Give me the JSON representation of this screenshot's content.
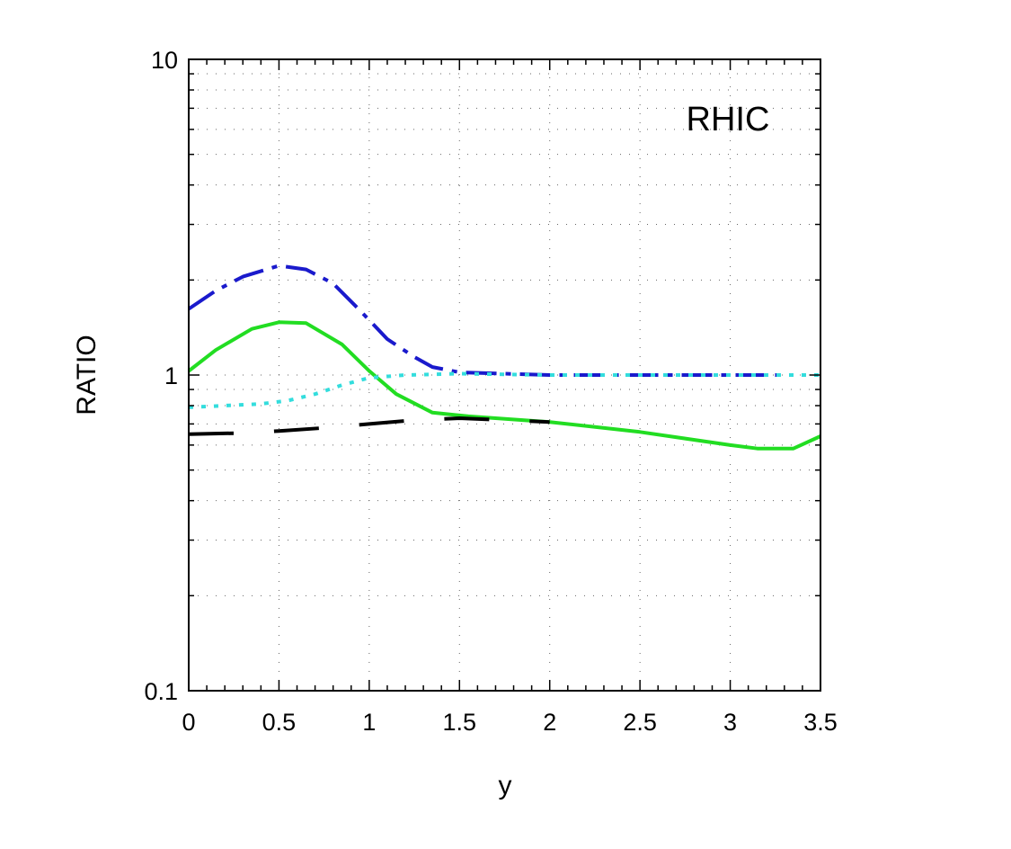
{
  "chart_data": {
    "type": "line",
    "title": "",
    "xlabel": "y",
    "ylabel": "RATIO",
    "annotation": "RHIC",
    "xlim": [
      0,
      3.5
    ],
    "ylim": [
      0.1,
      10
    ],
    "yscale": "log",
    "grid": true,
    "x_ticks": [
      "0",
      "0.5",
      "1",
      "1.5",
      "2",
      "2.5",
      "3",
      "3.5"
    ],
    "y_ticks": [
      "0.1",
      "1",
      "10"
    ],
    "series": [
      {
        "color": "#1a1acc",
        "style": "dash-dot",
        "points": [
          [
            0,
            1.62
          ],
          [
            0.15,
            1.85
          ],
          [
            0.3,
            2.05
          ],
          [
            0.5,
            2.22
          ],
          [
            0.65,
            2.16
          ],
          [
            0.8,
            1.95
          ],
          [
            0.95,
            1.6
          ],
          [
            1.1,
            1.3
          ],
          [
            1.25,
            1.14
          ],
          [
            1.35,
            1.06
          ],
          [
            1.5,
            1.02
          ],
          [
            2.0,
            1.0
          ],
          [
            2.5,
            1.0
          ],
          [
            3.0,
            1.0
          ],
          [
            3.35,
            1.0
          ]
        ]
      },
      {
        "color": "#22dd22",
        "style": "solid",
        "points": [
          [
            0,
            1.03
          ],
          [
            0.15,
            1.2
          ],
          [
            0.35,
            1.4
          ],
          [
            0.5,
            1.47
          ],
          [
            0.65,
            1.46
          ],
          [
            0.85,
            1.25
          ],
          [
            1.0,
            1.03
          ],
          [
            1.15,
            0.87
          ],
          [
            1.35,
            0.76
          ],
          [
            1.55,
            0.74
          ],
          [
            2.0,
            0.71
          ],
          [
            2.5,
            0.66
          ],
          [
            3.0,
            0.6
          ],
          [
            3.15,
            0.585
          ],
          [
            3.35,
            0.585
          ],
          [
            3.5,
            0.64
          ]
        ]
      },
      {
        "color": "#33dddd",
        "style": "dotted",
        "points": [
          [
            0,
            0.79
          ],
          [
            0.2,
            0.8
          ],
          [
            0.4,
            0.81
          ],
          [
            0.55,
            0.83
          ],
          [
            0.7,
            0.87
          ],
          [
            0.85,
            0.93
          ],
          [
            1.0,
            0.98
          ],
          [
            1.2,
            1.0
          ],
          [
            1.5,
            1.01
          ],
          [
            2.0,
            1.0
          ],
          [
            2.5,
            1.0
          ],
          [
            3.0,
            1.0
          ],
          [
            3.5,
            1.0
          ]
        ]
      },
      {
        "color": "#000000",
        "style": "long-dash",
        "points": [
          [
            0,
            0.65
          ],
          [
            0.3,
            0.655
          ],
          [
            0.5,
            0.665
          ],
          [
            0.75,
            0.68
          ],
          [
            1.0,
            0.7
          ],
          [
            1.25,
            0.72
          ],
          [
            1.5,
            0.73
          ],
          [
            1.75,
            0.72
          ],
          [
            2.0,
            0.71
          ]
        ]
      }
    ]
  }
}
